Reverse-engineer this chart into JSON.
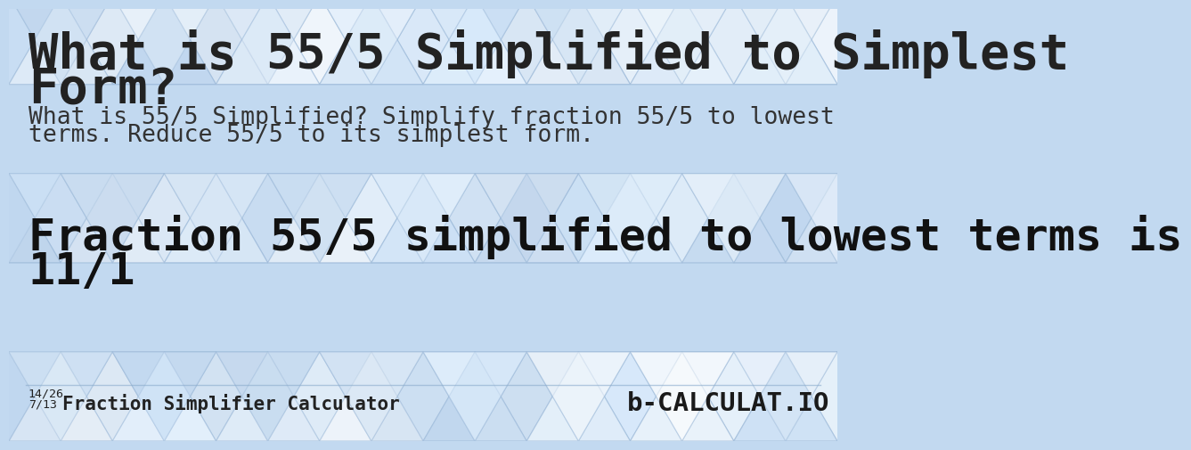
{
  "title_line1": "What is 55/5 Simplified to Simplest",
  "title_line2": "Form?",
  "subtitle_line1": "What is 55/5 Simplified? Simplify fraction 55/5 to lowest",
  "subtitle_line2": "terms. Reduce 55/5 to its simplest form.",
  "result_line1": "Fraction 55/5 simplified to lowest terms is",
  "result_line2": "11/1",
  "footer_fraction_top": "14/26",
  "footer_fraction_bottom": "7/13",
  "footer_text": "Fraction Simplifier Calculator",
  "bg_color": "#c2d9f0",
  "title_color": "#222222",
  "subtitle_color": "#333333",
  "result_color": "#111111",
  "footer_color": "#222222",
  "title_fontsize": 40,
  "subtitle_fontsize": 19,
  "result_fontsize": 36,
  "footer_fontsize": 15,
  "figwidth": 12.0,
  "figheight": 6.3
}
